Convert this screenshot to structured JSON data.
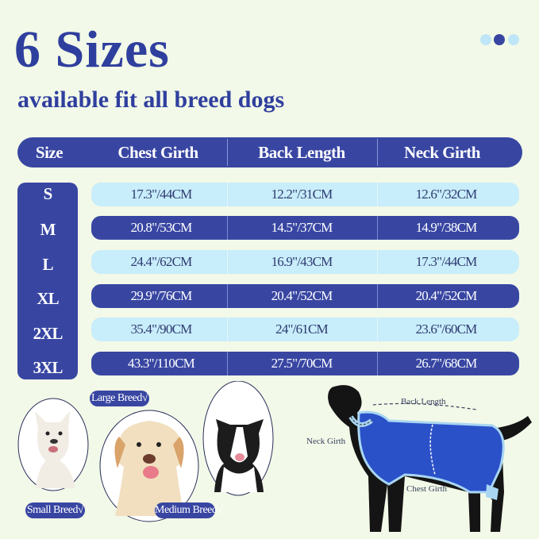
{
  "title": "6 Sizes",
  "subtitle": "available fit all breed dogs",
  "carousel_dots": [
    {
      "active": false
    },
    {
      "active": true
    },
    {
      "active": false
    }
  ],
  "colors": {
    "primary": "#3846a2",
    "light_row": "#c8edfb",
    "background": "#f2f9e8",
    "dot_inactive": "#bfe6f7",
    "dot_active": "#3846a2"
  },
  "table": {
    "headers": [
      "Size",
      "Chest Girth",
      "Back Length",
      "Neck Girth"
    ],
    "rows": [
      {
        "size": "S",
        "chest": "17.3\"/44CM",
        "back": "12.2\"/31CM",
        "neck": "12.6\"/32CM"
      },
      {
        "size": "M",
        "chest": "20.8\"/53CM",
        "back": "14.5\"/37CM",
        "neck": "14.9\"/38CM"
      },
      {
        "size": "L",
        "chest": "24.4\"/62CM",
        "back": "16.9\"/43CM",
        "neck": "17.3\"/44CM"
      },
      {
        "size": "XL",
        "chest": "29.9\"/76CM",
        "back": "20.4\"/52CM",
        "neck": "20.4\"/52CM"
      },
      {
        "size": "2XL",
        "chest": "35.4\"/90CM",
        "back": "24\"/61CM",
        "neck": "23.6\"/60CM"
      },
      {
        "size": "3XL",
        "chest": "43.3\"/110CM",
        "back": "27.5\"/70CM",
        "neck": "26.7\"/68CM"
      }
    ]
  },
  "breeds": {
    "large": "Large Breed√",
    "small": "Small Breed√",
    "medium": "Medium Breed√"
  },
  "diagram": {
    "back_length": "Back Length",
    "neck_girth": "Neck Girth",
    "chest_girth": "Chest Girth"
  }
}
